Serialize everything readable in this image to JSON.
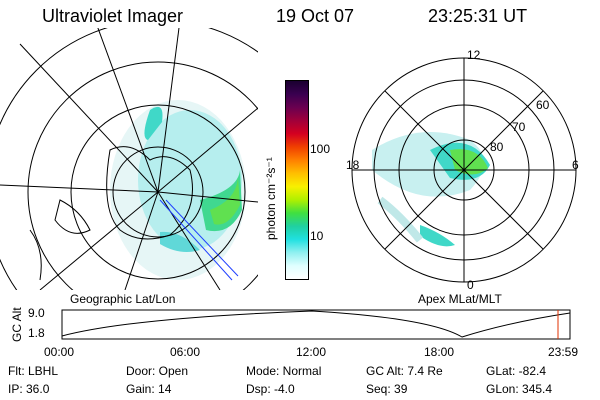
{
  "header": {
    "title": "Ultraviolet Imager",
    "date": "19 Oct 07",
    "time": "23:25:31 UT"
  },
  "colorbar": {
    "label": "photon cm⁻²s⁻¹",
    "ticks": [
      "100",
      "10"
    ],
    "colors": [
      "#1a0030",
      "#3a0050",
      "#6a0050",
      "#a0003a",
      "#d40020",
      "#f04000",
      "#ff8000",
      "#ffbf00",
      "#f8f000",
      "#b0f000",
      "#40e040",
      "#20d0a0",
      "#20e0e0",
      "#90f0f0",
      "#e0ffff",
      "#ffffff"
    ]
  },
  "geo_map": {
    "caption": "Geographic Lat/Lon"
  },
  "polar_map": {
    "caption": "Apex MLat/MLT",
    "mlt_labels": {
      "top": "12",
      "left": "18",
      "right": "6",
      "bottom": "0"
    },
    "lat_labels": [
      "60",
      "70",
      "80"
    ]
  },
  "timeline": {
    "ylabel": "GC Alt",
    "y_ticks": [
      "9.0",
      "1.8"
    ],
    "x_ticks": [
      "00:00",
      "06:00",
      "12:00",
      "18:00",
      "23:59"
    ],
    "current_time_marker": "23:25"
  },
  "params": {
    "filter": "Flt: LBHL",
    "ip": "IP: 36.0",
    "door": "Door: Open",
    "gain": "Gain: 14",
    "mode": "Mode: Normal",
    "dsp": "Dsp:    -4.0",
    "gcalt": "GC Alt: 7.4 Re",
    "seq": "Seq: 39",
    "glat": "GLat: -82.4",
    "glon": "GLon: 345.4"
  }
}
